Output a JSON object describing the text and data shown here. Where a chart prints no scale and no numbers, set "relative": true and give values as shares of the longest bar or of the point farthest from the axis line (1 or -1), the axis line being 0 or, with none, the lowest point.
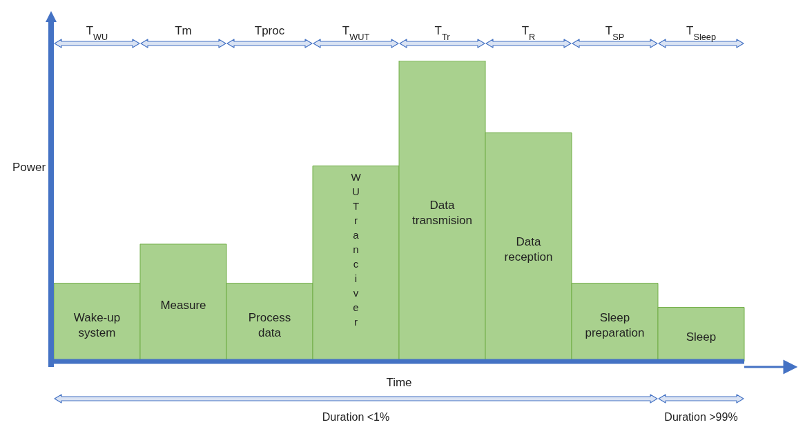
{
  "chart_data": {
    "type": "bar",
    "relative": true,
    "xlabel": "Time",
    "ylabel": "Power",
    "categories": [
      "Wake-up system",
      "Measure",
      "Process data",
      "WUTranciver",
      "Data transmision",
      "Data reception",
      "Sleep preparation",
      "Sleep"
    ],
    "values": [
      0.26,
      0.39,
      0.26,
      0.65,
      1,
      0.76,
      0.26,
      0.18
    ],
    "color": "#a9d18e",
    "annotations": [
      "T$_{WU}$",
      "Tm",
      "Tproc",
      "T$_{WUT}$",
      "T$_{Tr}$",
      "T$_{R}$",
      "T$_{SP}$",
      "T$_{Sleep}$",
      "Duration <1%",
      "Duration >99%"
    ]
  }
}
